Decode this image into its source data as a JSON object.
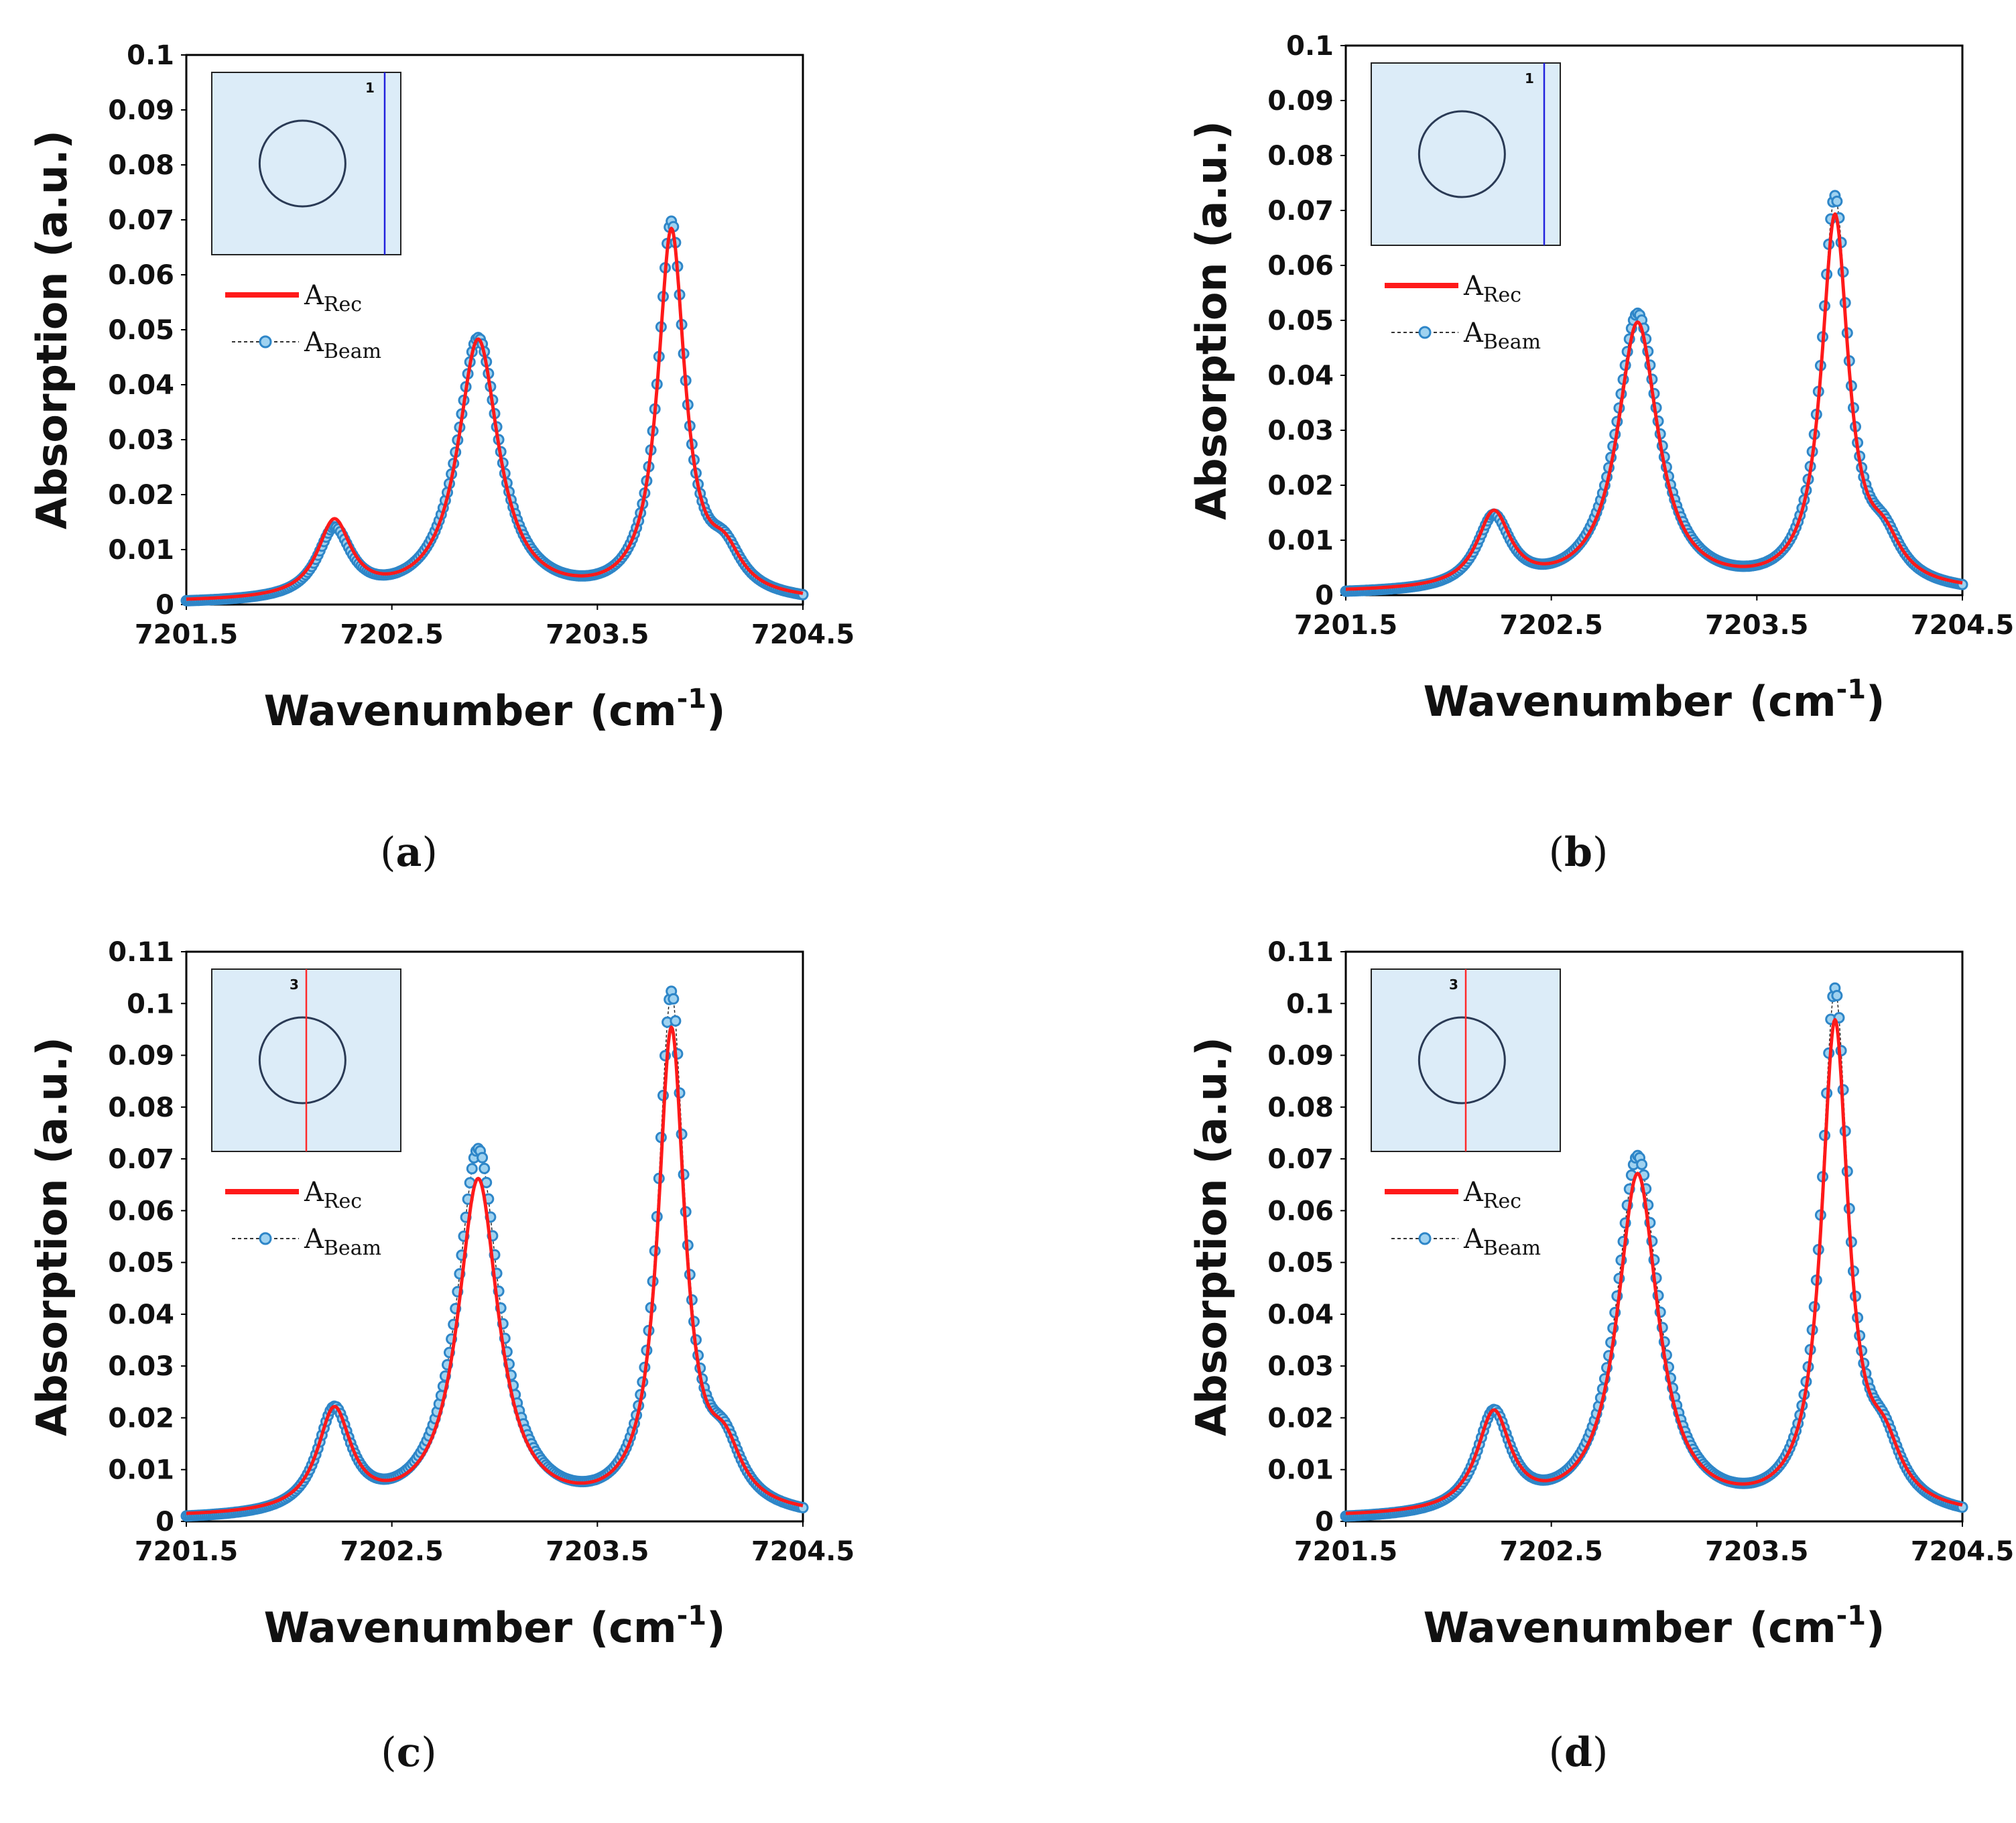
{
  "colors": {
    "rec": "#ff1a1a",
    "beam_marker": "#2e86c8",
    "beam_fill": "#9fd2f0",
    "beam_line": "#2b2b2b",
    "inset_bg": "#dcecf8"
  },
  "chart_data": [
    {
      "type": "line",
      "panel": "(a)",
      "inset_number": "1",
      "inset_line_color": "#2222dd",
      "xlabel": "Wavenumber",
      "xlabel_unit": "(cm",
      "xlabel_sup": "-1",
      "xlabel_close": ")",
      "ylabel": "Absorption (a.u.)",
      "xlim": [
        7201.5,
        7204.5
      ],
      "ylim": [
        0,
        0.1
      ],
      "xticks": [
        "7201.5",
        "7202.5",
        "7203.5",
        "7204.5"
      ],
      "yticks": [
        "0",
        "0.01",
        "0.02",
        "0.03",
        "0.04",
        "0.05",
        "0.06",
        "0.07",
        "0.08",
        "0.09",
        "0.1"
      ],
      "legend": [
        {
          "main": "A",
          "sub": "Rec"
        },
        {
          "main": "A",
          "sub": "Beam"
        }
      ],
      "series": [
        {
          "name": "A_Rec",
          "baseline": 0.0003,
          "peaks": [
            [
              7202.22,
              0.0138,
              0.1
            ],
            [
              7202.92,
              0.0472,
              0.12
            ],
            [
              7203.86,
              0.0665,
              0.08
            ],
            [
              7204.12,
              0.0065,
              0.1
            ]
          ]
        },
        {
          "name": "A_Beam",
          "baseline": 0.0,
          "peaks": [
            [
              7202.22,
              0.0125,
              0.1
            ],
            [
              7202.92,
              0.0478,
              0.125
            ],
            [
              7203.86,
              0.068,
              0.08
            ],
            [
              7204.12,
              0.0068,
              0.1
            ]
          ]
        }
      ]
    },
    {
      "type": "line",
      "panel": "(b)",
      "inset_number": "1",
      "inset_line_color": "#2222dd",
      "xlabel": "Wavenumber",
      "xlabel_unit": "(cm",
      "xlabel_sup": "-1",
      "xlabel_close": ")",
      "ylabel": "Absorption (a.u.)",
      "xlim": [
        7201.5,
        7204.5
      ],
      "ylim": [
        0,
        0.1
      ],
      "xticks": [
        "7201.5",
        "7202.5",
        "7203.5",
        "7204.5"
      ],
      "yticks": [
        "0",
        "0.01",
        "0.02",
        "0.03",
        "0.04",
        "0.05",
        "0.06",
        "0.07",
        "0.08",
        "0.09",
        "0.1"
      ],
      "legend": [
        {
          "main": "A",
          "sub": "Rec"
        },
        {
          "main": "A",
          "sub": "Beam"
        }
      ],
      "series": [
        {
          "name": "A_Rec",
          "baseline": 0.0004,
          "peaks": [
            [
              7202.22,
              0.0135,
              0.1
            ],
            [
              7202.92,
              0.0485,
              0.12
            ],
            [
              7203.88,
              0.0672,
              0.08
            ],
            [
              7204.12,
              0.0065,
              0.1
            ]
          ]
        },
        {
          "name": "A_Beam",
          "baseline": 0.0,
          "peaks": [
            [
              7202.22,
              0.013,
              0.1
            ],
            [
              7202.92,
              0.0505,
              0.125
            ],
            [
              7203.88,
              0.0708,
              0.08
            ],
            [
              7204.12,
              0.0068,
              0.1
            ]
          ]
        }
      ]
    },
    {
      "type": "line",
      "panel": "(c)",
      "inset_number": "3",
      "inset_line_color": "#ff2a2a",
      "xlabel": "Wavenumber",
      "xlabel_unit": "(cm",
      "xlabel_sup": "-1",
      "xlabel_close": ")",
      "ylabel": "Absorption (a.u.)",
      "xlim": [
        7201.5,
        7204.5
      ],
      "ylim": [
        0,
        0.11
      ],
      "xticks": [
        "7201.5",
        "7202.5",
        "7203.5",
        "7204.5"
      ],
      "yticks": [
        "0",
        "0.01",
        "0.02",
        "0.03",
        "0.04",
        "0.05",
        "0.06",
        "0.07",
        "0.08",
        "0.09",
        "0.1",
        "0.11"
      ],
      "legend": [
        {
          "main": "A",
          "sub": "Rec"
        },
        {
          "main": "A",
          "sub": "Beam"
        }
      ],
      "series": [
        {
          "name": "A_Rec",
          "baseline": 0.0006,
          "peaks": [
            [
              7202.22,
              0.0195,
              0.1
            ],
            [
              7202.92,
              0.0645,
              0.12
            ],
            [
              7203.86,
              0.0925,
              0.08
            ],
            [
              7204.12,
              0.0095,
              0.1
            ]
          ]
        },
        {
          "name": "A_Beam",
          "baseline": 0.0,
          "peaks": [
            [
              7202.22,
              0.0198,
              0.1
            ],
            [
              7202.92,
              0.0708,
              0.125
            ],
            [
              7203.86,
              0.0998,
              0.08
            ],
            [
              7204.12,
              0.0098,
              0.1
            ]
          ]
        }
      ]
    },
    {
      "type": "line",
      "panel": "(d)",
      "inset_number": "3",
      "inset_line_color": "#ff2a2a",
      "xlabel": "Wavenumber",
      "xlabel_unit": "(cm",
      "xlabel_sup": "-1",
      "xlabel_close": ")",
      "ylabel": "Absorption (a.u.)",
      "xlim": [
        7201.5,
        7204.5
      ],
      "ylim": [
        0,
        0.11
      ],
      "xticks": [
        "7201.5",
        "7202.5",
        "7203.5",
        "7204.5"
      ],
      "yticks": [
        "0",
        "0.01",
        "0.02",
        "0.03",
        "0.04",
        "0.05",
        "0.06",
        "0.07",
        "0.08",
        "0.09",
        "0.1",
        "0.11"
      ],
      "legend": [
        {
          "main": "A",
          "sub": "Rec"
        },
        {
          "main": "A",
          "sub": "Beam"
        }
      ],
      "series": [
        {
          "name": "A_Rec",
          "baseline": 0.0006,
          "peaks": [
            [
              7202.22,
              0.0188,
              0.1
            ],
            [
              7202.92,
              0.0655,
              0.12
            ],
            [
              7203.88,
              0.0938,
              0.08
            ],
            [
              7204.12,
              0.0095,
              0.1
            ]
          ]
        },
        {
          "name": "A_Beam",
          "baseline": 0.0,
          "peaks": [
            [
              7202.22,
              0.0192,
              0.1
            ],
            [
              7202.92,
              0.0695,
              0.125
            ],
            [
              7203.88,
              0.1003,
              0.08
            ],
            [
              7204.12,
              0.0098,
              0.1
            ]
          ]
        }
      ]
    }
  ]
}
